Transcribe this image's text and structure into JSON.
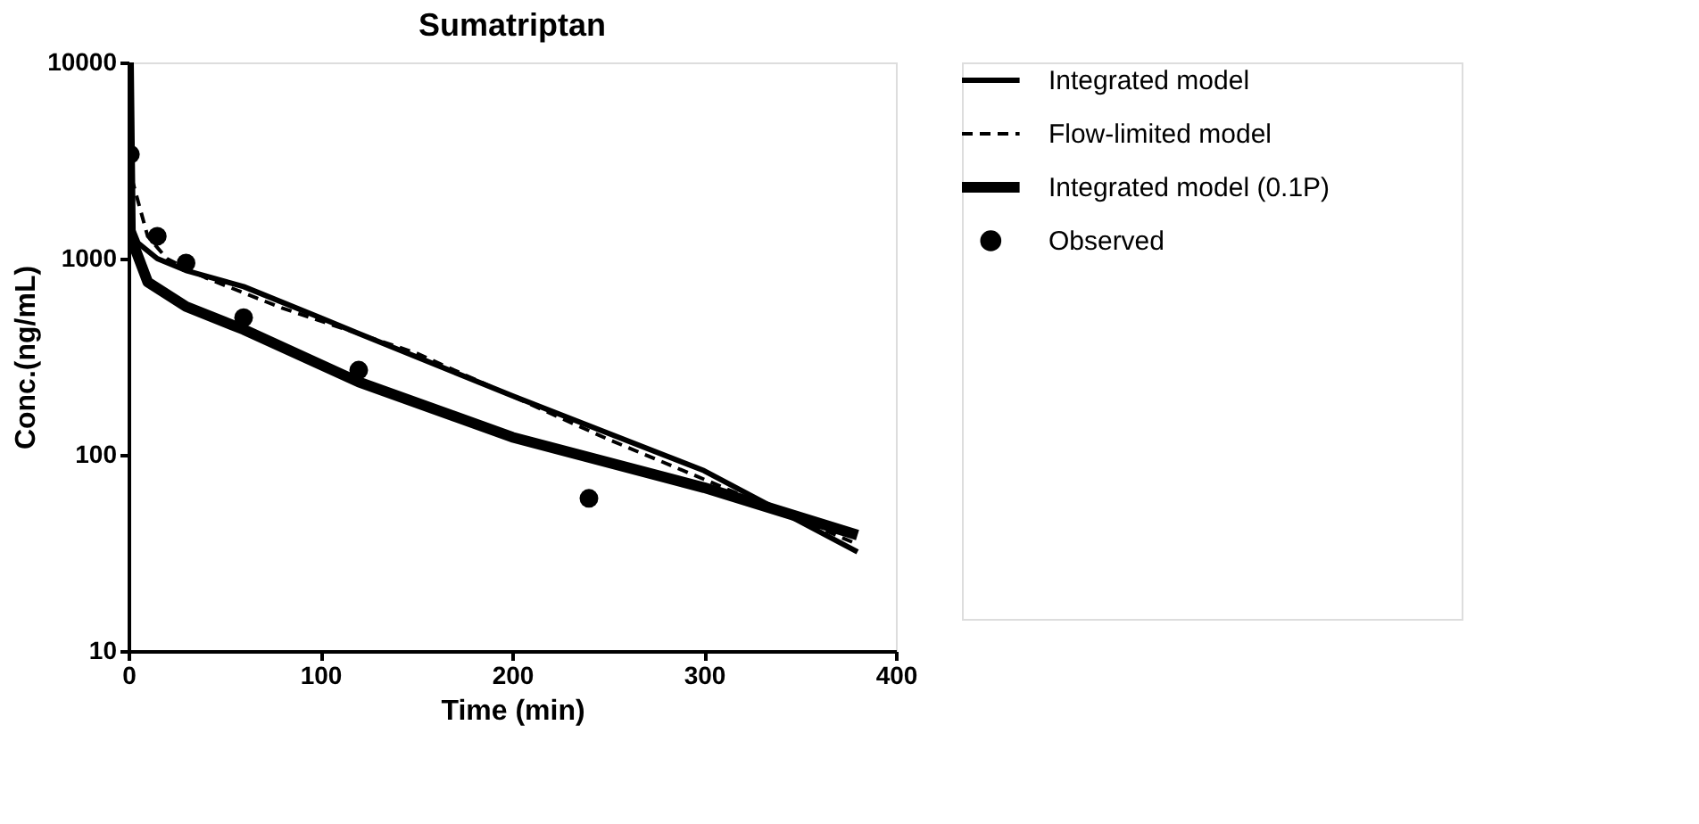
{
  "chart_data": {
    "type": "line",
    "title": "Sumatriptan",
    "xlabel": "Time (min)",
    "ylabel": "Conc.(ng/mL)",
    "xlim": [
      0,
      400
    ],
    "xticks": [
      0,
      100,
      200,
      300,
      400
    ],
    "ylim": [
      10,
      10000
    ],
    "yticks": [
      10,
      100,
      1000,
      10000
    ],
    "log": "y",
    "grid": false,
    "legend": "right",
    "series": [
      {
        "name": "Integrated model",
        "color": "#000000",
        "line_style": "solid",
        "marker": "none",
        "x": [
          0,
          1,
          5,
          15,
          30,
          60,
          100,
          120,
          200,
          300,
          380
        ],
        "values": [
          8000,
          1500,
          1200,
          1000,
          870,
          720,
          500,
          415,
          200,
          83,
          32
        ]
      },
      {
        "name": "Flow-limited model",
        "color": "#000000",
        "line_style": "dashed",
        "marker": "none",
        "x": [
          0,
          2,
          10,
          20,
          40,
          80,
          150,
          250,
          300,
          380
        ],
        "values": [
          9000,
          2500,
          1300,
          1000,
          800,
          560,
          330,
          120,
          75,
          35
        ]
      },
      {
        "name": "Integrated model (0.1P)",
        "color": "#000000",
        "line_style": "solid",
        "marker": "none",
        "x": [
          0,
          1,
          10,
          30,
          60,
          120,
          200,
          300,
          380
        ],
        "values": [
          10000,
          1300,
          760,
          570,
          435,
          235,
          123,
          68,
          39
        ]
      },
      {
        "name": "Observed",
        "type": "scatter",
        "color": "#000000",
        "marker": "circle",
        "x": [
          1,
          15,
          30,
          60,
          120,
          240
        ],
        "values": [
          3400,
          1300,
          950,
          500,
          270,
          60
        ]
      }
    ]
  }
}
